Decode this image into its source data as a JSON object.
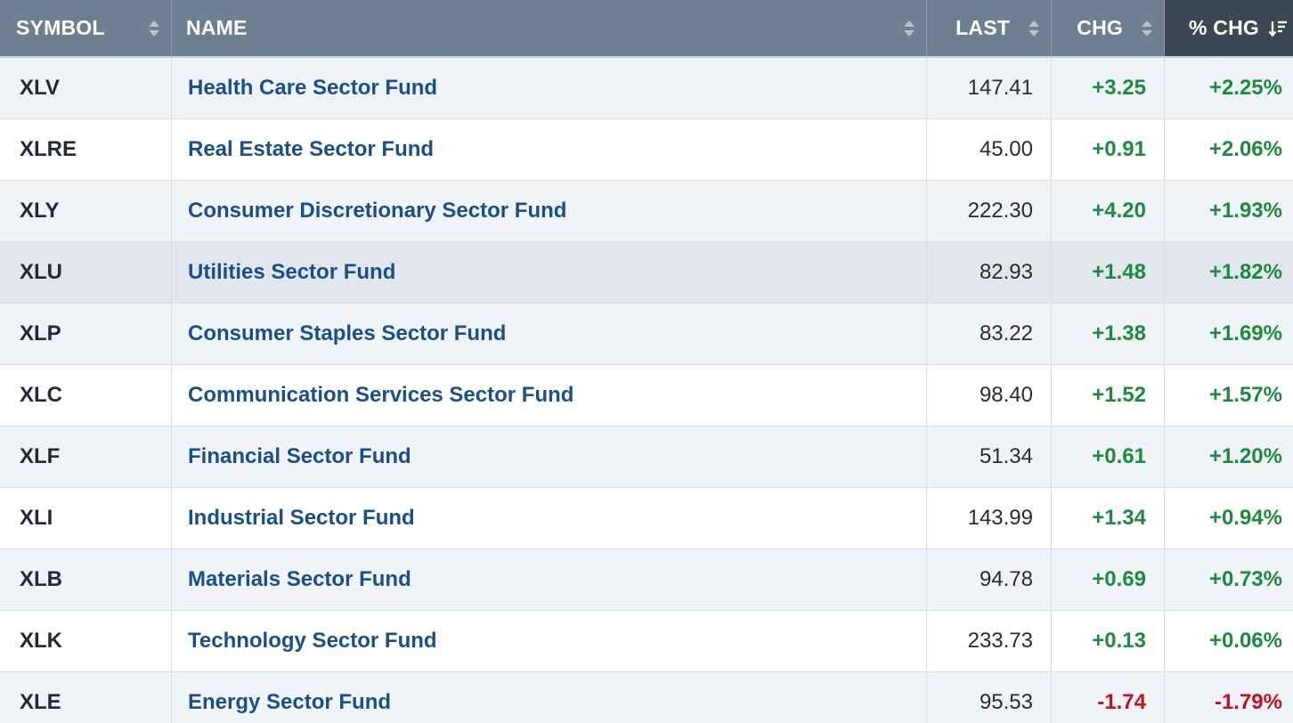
{
  "columns": {
    "symbol": "SYMBOL",
    "name": "NAME",
    "last": "LAST",
    "chg": "CHG",
    "pct_chg": "% CHG"
  },
  "sort": {
    "column": "pct_chg",
    "direction": "descending"
  },
  "colors": {
    "positive": "#1e8a3c",
    "negative": "#c0141d",
    "link": "#1b4f8a",
    "header": "#6e7f92",
    "header_active": "#3c4754"
  },
  "rows": [
    {
      "symbol": "XLV",
      "name": "Health Care Sector Fund",
      "last": "147.41",
      "chg": "+3.25",
      "pct_chg": "+2.25%"
    },
    {
      "symbol": "XLRE",
      "name": "Real Estate Sector Fund",
      "last": "45.00",
      "chg": "+0.91",
      "pct_chg": "+2.06%"
    },
    {
      "symbol": "XLY",
      "name": "Consumer Discretionary Sector Fund",
      "last": "222.30",
      "chg": "+4.20",
      "pct_chg": "+1.93%"
    },
    {
      "symbol": "XLU",
      "name": "Utilities Sector Fund",
      "last": "82.93",
      "chg": "+1.48",
      "pct_chg": "+1.82%"
    },
    {
      "symbol": "XLP",
      "name": "Consumer Staples Sector Fund",
      "last": "83.22",
      "chg": "+1.38",
      "pct_chg": "+1.69%"
    },
    {
      "symbol": "XLC",
      "name": "Communication Services Sector Fund",
      "last": "98.40",
      "chg": "+1.52",
      "pct_chg": "+1.57%"
    },
    {
      "symbol": "XLF",
      "name": "Financial Sector Fund",
      "last": "51.34",
      "chg": "+0.61",
      "pct_chg": "+1.20%"
    },
    {
      "symbol": "XLI",
      "name": "Industrial Sector Fund",
      "last": "143.99",
      "chg": "+1.34",
      "pct_chg": "+0.94%"
    },
    {
      "symbol": "XLB",
      "name": "Materials Sector Fund",
      "last": "94.78",
      "chg": "+0.69",
      "pct_chg": "+0.73%"
    },
    {
      "symbol": "XLK",
      "name": "Technology Sector Fund",
      "last": "233.73",
      "chg": "+0.13",
      "pct_chg": "+0.06%"
    },
    {
      "symbol": "XLE",
      "name": "Energy Sector Fund",
      "last": "95.53",
      "chg": "-1.74",
      "pct_chg": "-1.79%"
    }
  ]
}
